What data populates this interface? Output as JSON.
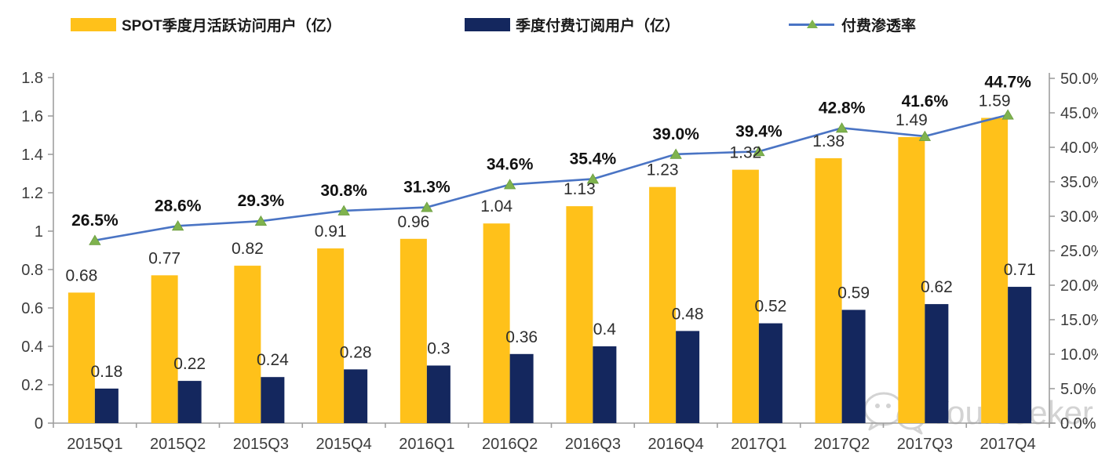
{
  "legend": [
    {
      "label": "SPOT季度月活跃访问用户（亿）",
      "color": "#ffc11a",
      "type": "bar"
    },
    {
      "label": "季度付费订阅用户（亿）",
      "color": "#14275e",
      "type": "bar"
    },
    {
      "label": "付费渗透率",
      "color": "#4a74c4",
      "marker_color": "#7fb34e",
      "type": "line"
    }
  ],
  "watermark": {
    "text": "Yourseeker",
    "icon": "wechat-icon"
  },
  "chart_data": {
    "type": "bar",
    "subtype": "combo-bar-line-dual-axis",
    "title": "",
    "categories": [
      "2015Q1",
      "2015Q2",
      "2015Q3",
      "2015Q4",
      "2016Q1",
      "2016Q2",
      "2016Q3",
      "2016Q4",
      "2017Q1",
      "2017Q2",
      "2017Q3",
      "2017Q4"
    ],
    "series": [
      {
        "name": "SPOT季度月活跃访问用户（亿）",
        "type": "bar",
        "axis": "left",
        "color": "#ffc11a",
        "values": [
          0.68,
          0.77,
          0.82,
          0.91,
          0.96,
          1.04,
          1.13,
          1.23,
          1.32,
          1.38,
          1.49,
          1.59
        ],
        "labels": [
          "0.68",
          "0.77",
          "0.82",
          "0.91",
          "0.96",
          "1.04",
          "1.13",
          "1.23",
          "1.32",
          "1.38",
          "1.49",
          "1.59"
        ]
      },
      {
        "name": "季度付费订阅用户（亿）",
        "type": "bar",
        "axis": "left",
        "color": "#14275e",
        "values": [
          0.18,
          0.22,
          0.24,
          0.28,
          0.3,
          0.36,
          0.4,
          0.48,
          0.52,
          0.59,
          0.62,
          0.71
        ],
        "labels": [
          "0.18",
          "0.22",
          "0.24",
          "0.28",
          "0.3",
          "0.36",
          "0.4",
          "0.48",
          "0.52",
          "0.59",
          "0.62",
          "0.71"
        ]
      },
      {
        "name": "付费渗透率",
        "type": "line",
        "axis": "right",
        "color": "#4a74c4",
        "marker": "triangle",
        "marker_color": "#7fb34e",
        "values": [
          26.5,
          28.6,
          29.3,
          30.8,
          31.3,
          34.6,
          35.4,
          39.0,
          39.4,
          42.8,
          41.6,
          44.7
        ],
        "labels": [
          "26.5%",
          "28.6%",
          "29.3%",
          "30.8%",
          "31.3%",
          "34.6%",
          "35.4%",
          "39.0%",
          "39.4%",
          "42.8%",
          "41.6%",
          "44.7%"
        ]
      }
    ],
    "left_axis": {
      "min": 0,
      "max": 1.8,
      "step": 0.2,
      "ticks": [
        "0",
        "0.2",
        "0.4",
        "0.6",
        "0.8",
        "1",
        "1.2",
        "1.4",
        "1.6",
        "1.8"
      ]
    },
    "right_axis": {
      "min": 0,
      "max": 50,
      "step": 5,
      "ticks": [
        "0.0%",
        "5.0%",
        "10.0%",
        "15.0%",
        "20.0%",
        "25.0%",
        "30.0%",
        "35.0%",
        "40.0%",
        "45.0%",
        "50.0%"
      ]
    },
    "grid": false,
    "legend_position": "top"
  },
  "colors": {
    "axis_line": "#9e9e9e",
    "axis_text": "#3c3c3c",
    "value_text": "#2e2e2e",
    "pct_text": "#111111",
    "watermark": "#b9b9b9"
  }
}
